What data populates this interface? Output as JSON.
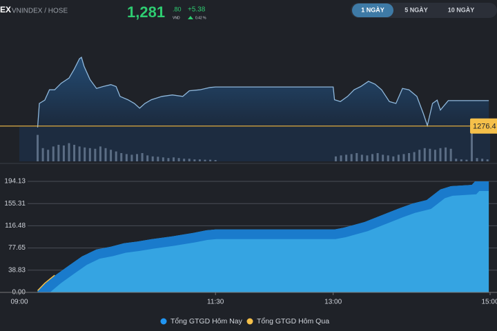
{
  "header": {
    "symbol": "EX",
    "exchange": "VNINDEX / HOSE",
    "price": "1,281",
    "price_decimal": ".80",
    "currency": "VND",
    "change": "+5.38",
    "change_pct": "0.42 %"
  },
  "buttons": [
    "1 NGÀY",
    "5 NGÀY",
    "10 NGÀY"
  ],
  "active_button": 0,
  "chart_data": [
    {
      "type": "line",
      "color": "#8fb8dc",
      "fill": "#24507c",
      "x": [
        14,
        15.3,
        19.5,
        23,
        27,
        32,
        38,
        42,
        46,
        47.5,
        49.5,
        54,
        59,
        64,
        70,
        74,
        77,
        83,
        88,
        92,
        96,
        101,
        109,
        117,
        125,
        130,
        138,
        146,
        150,
        240,
        241,
        245.5,
        251,
        256,
        261,
        267,
        272,
        277,
        283,
        288,
        293,
        298,
        304,
        309,
        312,
        316,
        319.5,
        322,
        328,
        359
      ],
      "values": [
        1276.1,
        1281.2,
        1281.9,
        1284.1,
        1284.1,
        1285.5,
        1286.6,
        1288.5,
        1290.7,
        1291.0,
        1289.1,
        1286.3,
        1284.4,
        1284.8,
        1285.2,
        1284.8,
        1282.7,
        1282.0,
        1281.2,
        1280.2,
        1281.2,
        1282.0,
        1282.7,
        1283.0,
        1282.7,
        1283.9,
        1284.1,
        1284.6,
        1284.7,
        1284.7,
        1282.0,
        1281.6,
        1282.7,
        1284.1,
        1284.8,
        1285.9,
        1285.3,
        1284.1,
        1281.6,
        1281.2,
        1284.4,
        1284.1,
        1282.7,
        1279.0,
        1276.5,
        1281.2,
        1281.9,
        1279.8,
        1281.8,
        1281.8
      ],
      "xlim": [
        0,
        360
      ],
      "ylim": [
        1273,
        1296
      ],
      "reference_line": 1276.4,
      "reference_color": "#f5c04a",
      "volume": {
        "color": "#5b6d84",
        "ylim": [
          0,
          100
        ],
        "x": [
          14,
          18,
          22,
          26,
          30,
          34,
          38,
          42,
          46,
          50,
          54,
          58,
          62,
          66,
          70,
          74,
          78,
          82,
          86,
          90,
          94,
          98,
          102,
          106,
          110,
          114,
          118,
          122,
          126,
          130,
          134,
          138,
          142,
          146,
          150,
          242,
          246,
          250,
          254,
          258,
          262,
          266,
          270,
          274,
          278,
          282,
          286,
          290,
          294,
          298,
          302,
          306,
          310,
          314,
          318,
          322,
          326,
          330,
          334,
          338,
          342,
          346,
          350,
          354,
          358
        ],
        "values": [
          80,
          40,
          35,
          45,
          50,
          48,
          55,
          50,
          45,
          42,
          40,
          38,
          45,
          40,
          35,
          30,
          25,
          22,
          20,
          22,
          25,
          18,
          15,
          14,
          12,
          10,
          12,
          10,
          8,
          8,
          6,
          6,
          5,
          5,
          4,
          15,
          18,
          20,
          22,
          25,
          20,
          18,
          22,
          25,
          20,
          18,
          15,
          20,
          22,
          25,
          28,
          35,
          40,
          38,
          35,
          40,
          42,
          38,
          8,
          6,
          5,
          100,
          10,
          8,
          6
        ]
      }
    },
    {
      "type": "area",
      "grid": true,
      "xlim": [
        0,
        360
      ],
      "xticks": [
        {
          "value": 0,
          "label": "09:00"
        },
        {
          "value": 150,
          "label": "11:30"
        },
        {
          "value": 240,
          "label": "13:00"
        },
        {
          "value": 360,
          "label": "15:00"
        }
      ],
      "ylim": [
        0,
        194.13
      ],
      "yticks": [
        {
          "value": 0,
          "label": "0.00"
        },
        38.83,
        77.65,
        116.48,
        155.31,
        194.13
      ],
      "series": [
        {
          "name": "Tổng GTGD Hôm Nay",
          "color": "#35a4e2",
          "edge_color": "#1a7bcc",
          "x": [
            14,
            19.5,
            27,
            38,
            48,
            59,
            70,
            80,
            90.5,
            101,
            117,
            133,
            143,
            150,
            240,
            241,
            248,
            264,
            280,
            290.5,
            301,
            311.5,
            322,
            330,
            346,
            348.5,
            359
          ],
          "values": [
            2.4,
            14.5,
            29,
            47,
            63,
            75,
            80,
            86,
            89,
            93,
            98,
            104,
            108.5,
            110,
            110,
            110,
            113,
            123,
            137.5,
            147,
            155.5,
            161.5,
            180,
            185.7,
            188,
            194.1,
            194.1
          ]
        },
        {
          "name": "Tổng GTGD Hôm Qua",
          "color": "#f5c04a",
          "x": [
            14,
            19.5,
            27
          ],
          "values": [
            3,
            16,
            30
          ]
        }
      ]
    }
  ]
}
